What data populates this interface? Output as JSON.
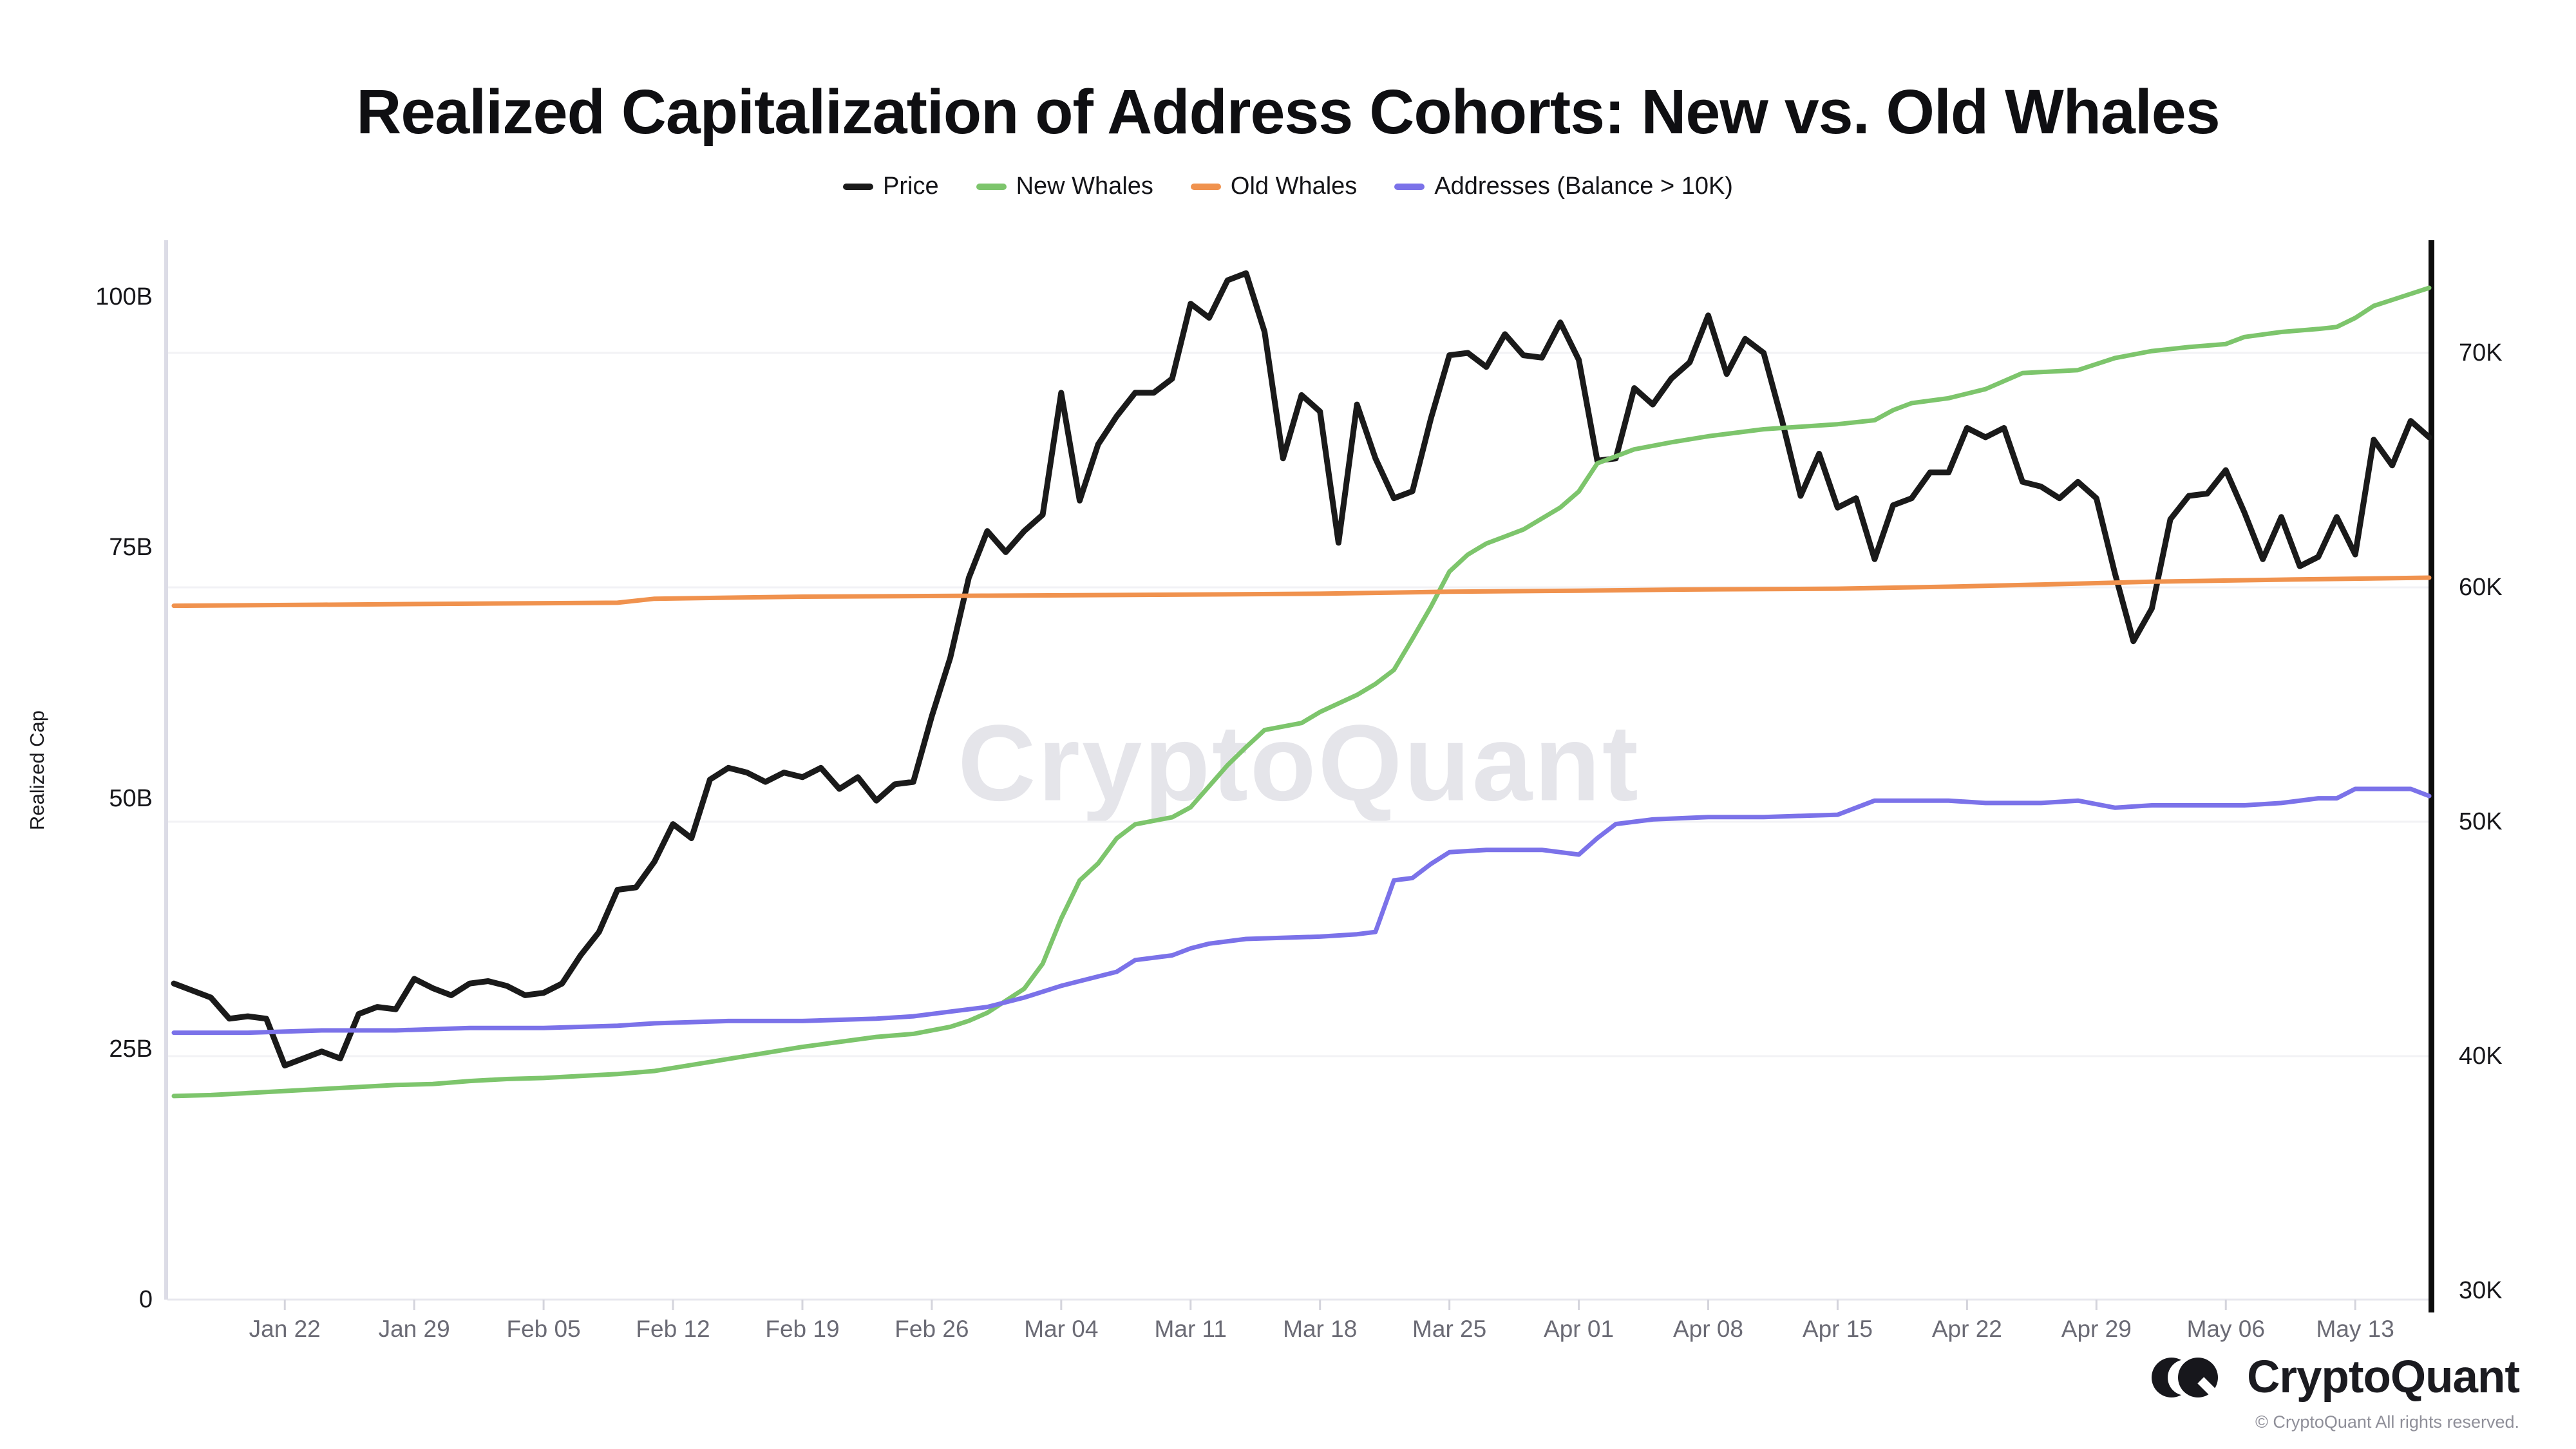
{
  "title": "Realized Capitalization of Address Cohorts: New vs. Old Whales",
  "legend": {
    "items": [
      {
        "label": "Price",
        "color": "#1a1a1a"
      },
      {
        "label": "New Whales",
        "color": "#7dc56c"
      },
      {
        "label": "Old Whales",
        "color": "#f0924e"
      },
      {
        "label": "Addresses (Balance > 10K)",
        "color": "#7b72e9"
      }
    ]
  },
  "watermark": "CryptoQuant",
  "footer": {
    "brand": "CryptoQuant",
    "copyright": "© CryptoQuant All rights reserved."
  },
  "chart_data": {
    "type": "line",
    "title": "Realized Capitalization of Address Cohorts: New vs. Old Whales",
    "grid": "horizontal-only",
    "legend_position": "top-center",
    "x_axis": {
      "start_date": "Jan 16",
      "end_date": "May 17",
      "max_day_index": 122,
      "tick_day_indices": [
        6,
        13,
        20,
        27,
        34,
        41,
        48,
        55,
        62,
        69,
        76,
        83,
        90,
        97,
        104,
        111,
        118
      ],
      "tick_labels": [
        "Jan 22",
        "Jan 29",
        "Feb 05",
        "Feb 12",
        "Feb 19",
        "Feb 26",
        "Mar 04",
        "Mar 11",
        "Mar 18",
        "Mar 25",
        "Apr 01",
        "Apr 08",
        "Apr 15",
        "Apr 22",
        "Apr 29",
        "May 06",
        "May 13"
      ]
    },
    "y_left_axis": {
      "label": "Realized Cap",
      "unit": "USD (billions)",
      "range": [
        0,
        105.6
      ],
      "ticks": [
        {
          "value": 100,
          "label": "100B"
        },
        {
          "value": 75,
          "label": "75B"
        },
        {
          "value": 50,
          "label": "50B"
        },
        {
          "value": 25,
          "label": "25B"
        },
        {
          "value": 0,
          "label": "0"
        }
      ]
    },
    "y_right_axis": {
      "unit": "USD (thousands)",
      "range": [
        29.2,
        74.8
      ],
      "gridline_values": [
        70,
        60,
        50,
        40
      ],
      "ticks": [
        {
          "value": 70,
          "label": "70K"
        },
        {
          "value": 60,
          "label": "60K"
        },
        {
          "value": 50,
          "label": "50K"
        },
        {
          "value": 40,
          "label": "40K"
        },
        {
          "value": 30,
          "label": "30K"
        }
      ]
    },
    "series": [
      {
        "name": "Price",
        "axis": "right",
        "color": "#1a1a1a",
        "line_width": 9,
        "values_start_day": 0,
        "values": [
          43.1,
          42.8,
          42.5,
          41.6,
          41.7,
          41.6,
          39.6,
          39.9,
          40.2,
          39.9,
          41.8,
          42.1,
          42.0,
          43.3,
          42.9,
          42.6,
          43.1,
          43.2,
          43.0,
          42.6,
          42.7,
          43.1,
          44.3,
          45.3,
          47.1,
          47.2,
          48.3,
          49.9,
          49.3,
          51.8,
          52.3,
          52.1,
          51.7,
          52.1,
          51.9,
          52.3,
          51.4,
          51.9,
          50.9,
          51.6,
          51.7,
          54.5,
          57.0,
          60.4,
          62.4,
          61.5,
          62.4,
          63.1,
          68.3,
          63.7,
          66.1,
          67.3,
          68.3,
          68.3,
          68.9,
          72.1,
          71.5,
          73.1,
          73.4,
          70.9,
          65.5,
          68.2,
          67.5,
          61.9,
          67.8,
          65.5,
          63.8,
          64.1,
          67.2,
          69.9,
          70.0,
          69.4,
          70.8,
          69.9,
          69.8,
          71.3,
          69.7,
          65.4,
          65.5,
          68.5,
          67.8,
          68.9,
          69.6,
          71.6,
          69.1,
          70.6,
          70.0,
          67.1,
          63.9,
          65.7,
          63.4,
          63.8,
          61.2,
          63.5,
          63.8,
          64.9,
          64.9,
          66.8,
          66.4,
          66.8,
          64.5,
          64.3,
          63.8,
          64.5,
          63.8,
          60.6,
          57.7,
          59.1,
          62.9,
          63.9,
          64.0,
          65.0,
          63.2,
          61.2,
          63.0,
          60.9,
          61.3,
          63.0,
          61.4,
          66.3,
          65.2,
          67.1,
          66.4
        ]
      },
      {
        "name": "New Whales",
        "axis": "left",
        "color": "#7dc56c",
        "line_width": 7,
        "points": [
          [
            0,
            20.3
          ],
          [
            2,
            20.4
          ],
          [
            4,
            20.6
          ],
          [
            6,
            20.8
          ],
          [
            8,
            21.0
          ],
          [
            10,
            21.2
          ],
          [
            12,
            21.4
          ],
          [
            14,
            21.5
          ],
          [
            16,
            21.8
          ],
          [
            18,
            22.0
          ],
          [
            20,
            22.1
          ],
          [
            22,
            22.3
          ],
          [
            24,
            22.5
          ],
          [
            26,
            22.8
          ],
          [
            28,
            23.4
          ],
          [
            30,
            24.0
          ],
          [
            32,
            24.6
          ],
          [
            34,
            25.2
          ],
          [
            36,
            25.7
          ],
          [
            38,
            26.2
          ],
          [
            40,
            26.5
          ],
          [
            42,
            27.2
          ],
          [
            43,
            27.8
          ],
          [
            44,
            28.6
          ],
          [
            46,
            31.0
          ],
          [
            47,
            33.5
          ],
          [
            48,
            38.0
          ],
          [
            49,
            41.8
          ],
          [
            50,
            43.5
          ],
          [
            51,
            46.0
          ],
          [
            52,
            47.4
          ],
          [
            54,
            48.1
          ],
          [
            55,
            49.1
          ],
          [
            56,
            51.2
          ],
          [
            57,
            53.3
          ],
          [
            58,
            55.1
          ],
          [
            59,
            56.8
          ],
          [
            61,
            57.5
          ],
          [
            62,
            58.6
          ],
          [
            64,
            60.3
          ],
          [
            65,
            61.4
          ],
          [
            66,
            62.8
          ],
          [
            67,
            65.9
          ],
          [
            68,
            69.1
          ],
          [
            69,
            72.6
          ],
          [
            70,
            74.3
          ],
          [
            71,
            75.4
          ],
          [
            72,
            76.1
          ],
          [
            73,
            76.8
          ],
          [
            75,
            79.0
          ],
          [
            76,
            80.6
          ],
          [
            77,
            83.4
          ],
          [
            79,
            84.8
          ],
          [
            81,
            85.5
          ],
          [
            83,
            86.1
          ],
          [
            86,
            86.8
          ],
          [
            90,
            87.3
          ],
          [
            92,
            87.7
          ],
          [
            93,
            88.7
          ],
          [
            94,
            89.4
          ],
          [
            96,
            89.9
          ],
          [
            98,
            90.8
          ],
          [
            100,
            92.4
          ],
          [
            103,
            92.7
          ],
          [
            105,
            93.9
          ],
          [
            107,
            94.6
          ],
          [
            109,
            95.0
          ],
          [
            111,
            95.3
          ],
          [
            112,
            96.0
          ],
          [
            114,
            96.5
          ],
          [
            116,
            96.8
          ],
          [
            117,
            97.0
          ],
          [
            118,
            97.9
          ],
          [
            119,
            99.1
          ],
          [
            120,
            99.7
          ],
          [
            121,
            100.3
          ],
          [
            122,
            100.9
          ]
        ]
      },
      {
        "name": "Old Whales",
        "axis": "left",
        "color": "#f0924e",
        "line_width": 7,
        "points": [
          [
            0,
            69.2
          ],
          [
            8,
            69.3
          ],
          [
            16,
            69.4
          ],
          [
            24,
            69.5
          ],
          [
            26,
            69.9
          ],
          [
            34,
            70.1
          ],
          [
            44,
            70.2
          ],
          [
            54,
            70.3
          ],
          [
            62,
            70.4
          ],
          [
            69,
            70.6
          ],
          [
            76,
            70.7
          ],
          [
            81,
            70.8
          ],
          [
            90,
            70.9
          ],
          [
            96,
            71.1
          ],
          [
            103,
            71.4
          ],
          [
            107,
            71.6
          ],
          [
            114,
            71.8
          ],
          [
            122,
            72.0
          ]
        ]
      },
      {
        "name": "Addresses (Balance > 10K)",
        "axis": "right",
        "color": "#7b72e9",
        "line_width": 7,
        "points": [
          [
            0,
            41.0
          ],
          [
            4,
            41.0
          ],
          [
            8,
            41.1
          ],
          [
            12,
            41.1
          ],
          [
            16,
            41.2
          ],
          [
            20,
            41.2
          ],
          [
            24,
            41.3
          ],
          [
            26,
            41.4
          ],
          [
            30,
            41.5
          ],
          [
            34,
            41.5
          ],
          [
            38,
            41.6
          ],
          [
            40,
            41.7
          ],
          [
            42,
            41.9
          ],
          [
            44,
            42.1
          ],
          [
            46,
            42.5
          ],
          [
            48,
            43.0
          ],
          [
            49,
            43.2
          ],
          [
            51,
            43.6
          ],
          [
            52,
            44.1
          ],
          [
            54,
            44.3
          ],
          [
            55,
            44.6
          ],
          [
            56,
            44.8
          ],
          [
            58,
            45.0
          ],
          [
            62,
            45.1
          ],
          [
            64,
            45.2
          ],
          [
            65,
            45.3
          ],
          [
            66,
            47.5
          ],
          [
            67,
            47.6
          ],
          [
            68,
            48.2
          ],
          [
            69,
            48.7
          ],
          [
            71,
            48.8
          ],
          [
            74,
            48.8
          ],
          [
            75,
            48.7
          ],
          [
            76,
            48.6
          ],
          [
            77,
            49.3
          ],
          [
            78,
            49.9
          ],
          [
            80,
            50.1
          ],
          [
            83,
            50.2
          ],
          [
            86,
            50.2
          ],
          [
            90,
            50.3
          ],
          [
            91,
            50.6
          ],
          [
            92,
            50.9
          ],
          [
            96,
            50.9
          ],
          [
            98,
            50.8
          ],
          [
            101,
            50.8
          ],
          [
            103,
            50.9
          ],
          [
            105,
            50.6
          ],
          [
            107,
            50.7
          ],
          [
            112,
            50.7
          ],
          [
            114,
            50.8
          ],
          [
            116,
            51.0
          ],
          [
            117,
            51.0
          ],
          [
            118,
            51.4
          ],
          [
            121,
            51.4
          ],
          [
            122,
            51.1
          ]
        ]
      }
    ]
  }
}
